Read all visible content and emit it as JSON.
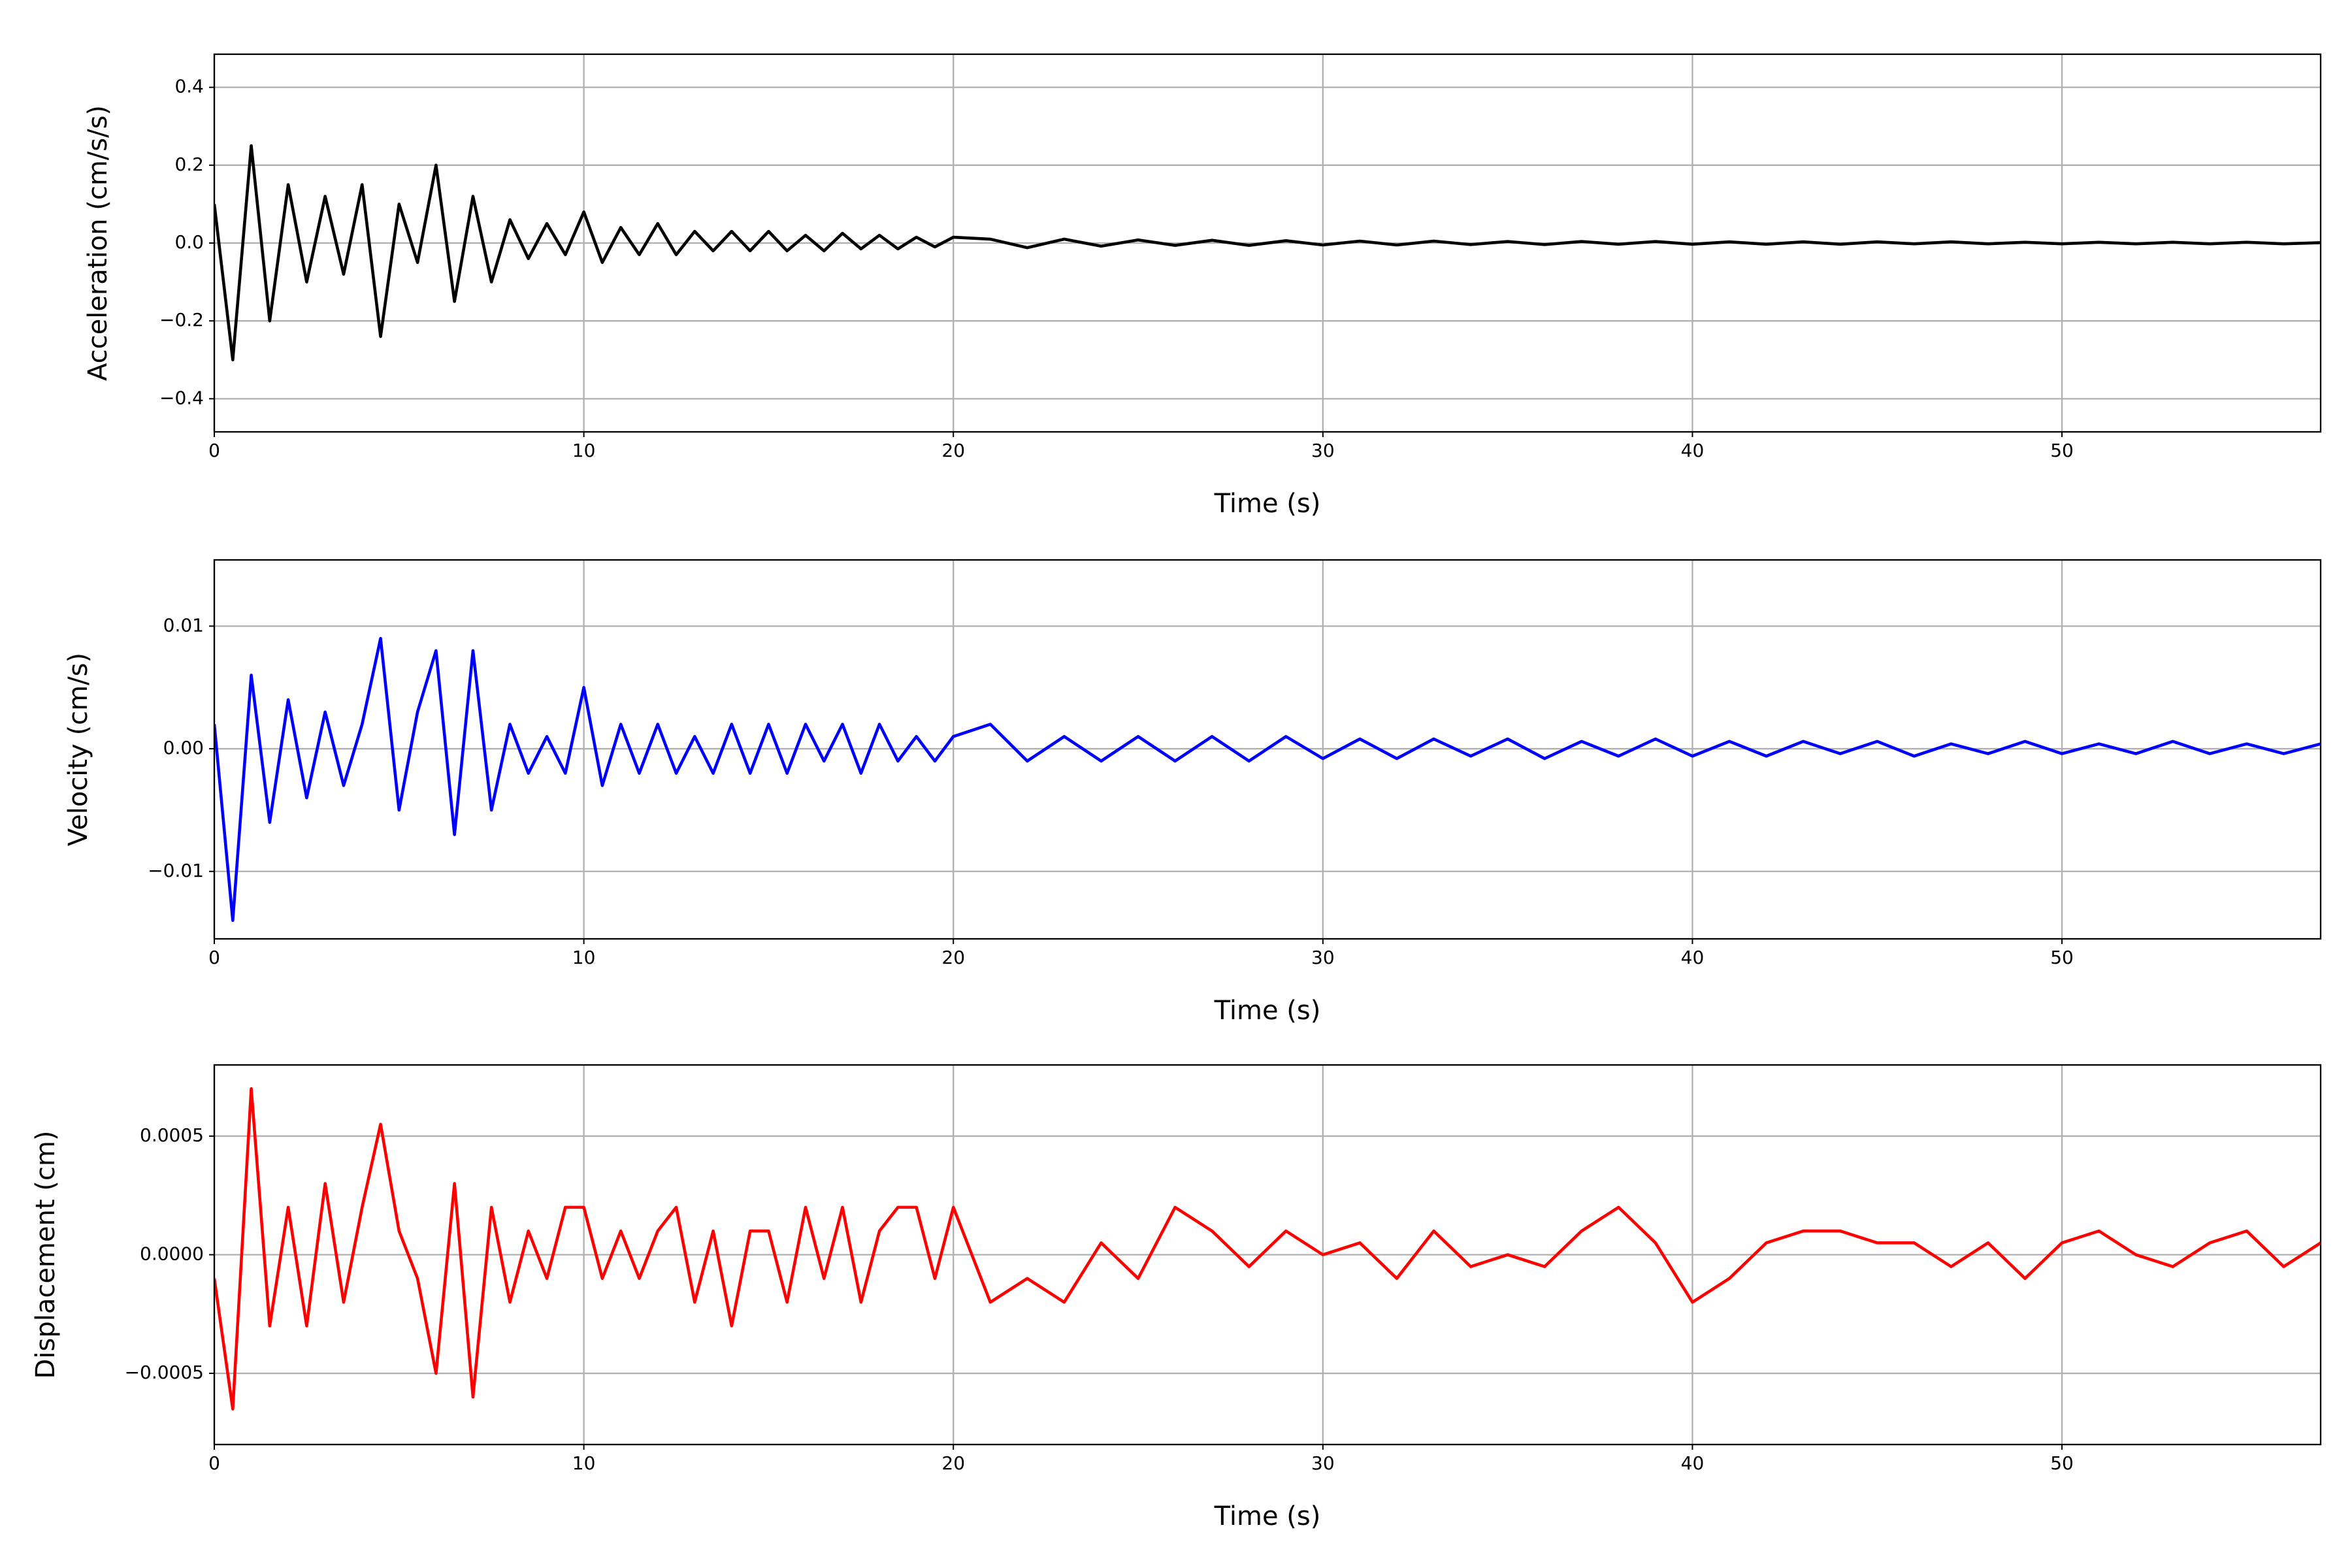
{
  "chart_data": [
    {
      "type": "line",
      "xlabel": "Time (s)",
      "ylabel": "Acceleration (cm/s/s)",
      "color": "#000000",
      "grid": true,
      "xlim": [
        0,
        57
      ],
      "xticks": [
        0,
        10,
        20,
        30,
        40,
        50
      ],
      "ylim": [
        -0.485,
        0.485
      ],
      "yticks": [
        {
          "value": -0.4,
          "label": "−0.4"
        },
        {
          "value": -0.2,
          "label": "−0.2"
        },
        {
          "value": 0,
          "label": "0.0"
        },
        {
          "value": 0.2,
          "label": "0.2"
        },
        {
          "value": 0.4,
          "label": "0.4"
        }
      ],
      "x": [
        0,
        0.5,
        1,
        1.5,
        2,
        2.5,
        3,
        3.5,
        4,
        4.5,
        5,
        5.5,
        6,
        6.5,
        7,
        7.5,
        8,
        8.5,
        9,
        9.5,
        10,
        10.5,
        11,
        11.5,
        12,
        12.5,
        13,
        13.5,
        14,
        14.5,
        15,
        15.5,
        16,
        16.5,
        17,
        17.5,
        18,
        18.5,
        19,
        19.5,
        20,
        21,
        22,
        23,
        24,
        25,
        26,
        27,
        28,
        29,
        30,
        31,
        32,
        33,
        34,
        35,
        36,
        37,
        38,
        39,
        40,
        41,
        42,
        43,
        44,
        45,
        46,
        47,
        48,
        49,
        50,
        51,
        52,
        53,
        54,
        55,
        56,
        57
      ],
      "values": [
        0.1,
        -0.3,
        0.25,
        -0.2,
        0.15,
        -0.1,
        0.12,
        -0.08,
        0.15,
        -0.24,
        0.1,
        -0.05,
        0.2,
        -0.15,
        0.12,
        -0.1,
        0.06,
        -0.04,
        0.05,
        -0.03,
        0.08,
        -0.05,
        0.04,
        -0.03,
        0.05,
        -0.03,
        0.03,
        -0.02,
        0.03,
        -0.02,
        0.03,
        -0.02,
        0.02,
        -0.02,
        0.025,
        -0.015,
        0.02,
        -0.015,
        0.015,
        -0.01,
        0.015,
        0.01,
        -0.012,
        0.01,
        -0.008,
        0.008,
        -0.006,
        0.007,
        -0.006,
        0.006,
        -0.005,
        0.005,
        -0.005,
        0.005,
        -0.004,
        0.004,
        -0.004,
        0.004,
        -0.003,
        0.004,
        -0.003,
        0.003,
        -0.003,
        0.003,
        -0.003,
        0.003,
        -0.002,
        0.003,
        -0.002,
        0.002,
        -0.002,
        0.002,
        -0.002,
        0.002,
        -0.002,
        0.002,
        -0.002,
        0.001
      ]
    },
    {
      "type": "line",
      "xlabel": "Time (s)",
      "ylabel": "Velocity (cm/s)",
      "color": "#0000ff",
      "grid": true,
      "xlim": [
        0,
        57
      ],
      "xticks": [
        0,
        10,
        20,
        30,
        40,
        50
      ],
      "ylim": [
        -0.0155,
        0.0154
      ],
      "yticks": [
        {
          "value": -0.01,
          "label": "−0.01"
        },
        {
          "value": 0,
          "label": "0.00"
        },
        {
          "value": 0.01,
          "label": "0.01"
        }
      ],
      "x": [
        0,
        0.5,
        1,
        1.5,
        2,
        2.5,
        3,
        3.5,
        4,
        4.5,
        5,
        5.5,
        6,
        6.5,
        7,
        7.5,
        8,
        8.5,
        9,
        9.5,
        10,
        10.5,
        11,
        11.5,
        12,
        12.5,
        13,
        13.5,
        14,
        14.5,
        15,
        15.5,
        16,
        16.5,
        17,
        17.5,
        18,
        18.5,
        19,
        19.5,
        20,
        21,
        22,
        23,
        24,
        25,
        26,
        27,
        28,
        29,
        30,
        31,
        32,
        33,
        34,
        35,
        36,
        37,
        38,
        39,
        40,
        41,
        42,
        43,
        44,
        45,
        46,
        47,
        48,
        49,
        50,
        51,
        52,
        53,
        54,
        55,
        56,
        57
      ],
      "values": [
        0.002,
        -0.014,
        0.006,
        -0.006,
        0.004,
        -0.004,
        0.003,
        -0.003,
        0.002,
        0.009,
        -0.005,
        0.003,
        0.008,
        -0.007,
        0.008,
        -0.005,
        0.002,
        -0.002,
        0.001,
        -0.002,
        0.005,
        -0.003,
        0.002,
        -0.002,
        0.002,
        -0.002,
        0.001,
        -0.002,
        0.002,
        -0.002,
        0.002,
        -0.002,
        0.002,
        -0.001,
        0.002,
        -0.002,
        0.002,
        -0.001,
        0.001,
        -0.001,
        0.001,
        0.002,
        -0.001,
        0.001,
        -0.001,
        0.001,
        -0.001,
        0.001,
        -0.001,
        0.001,
        -0.0008,
        0.0008,
        -0.0008,
        0.0008,
        -0.0006,
        0.0008,
        -0.0008,
        0.0006,
        -0.0006,
        0.0008,
        -0.0006,
        0.0006,
        -0.0006,
        0.0006,
        -0.0004,
        0.0006,
        -0.0006,
        0.0004,
        -0.0004,
        0.0006,
        -0.0004,
        0.0004,
        -0.0004,
        0.0006,
        -0.0004,
        0.0004,
        -0.0004,
        0.0004
      ]
    },
    {
      "type": "line",
      "xlabel": "Time (s)",
      "ylabel": "Displacement (cm)",
      "color": "#ff0000",
      "grid": true,
      "xlim": [
        0,
        57
      ],
      "xticks": [
        0,
        10,
        20,
        30,
        40,
        50
      ],
      "ylim": [
        -0.0008,
        0.0008
      ],
      "yticks": [
        {
          "value": -0.0005,
          "label": "−0.0005"
        },
        {
          "value": 0,
          "label": "0.0000"
        },
        {
          "value": 0.0005,
          "label": "0.0005"
        }
      ],
      "x": [
        0,
        0.5,
        1,
        1.5,
        2,
        2.5,
        3,
        3.5,
        4,
        4.5,
        5,
        5.5,
        6,
        6.5,
        7,
        7.5,
        8,
        8.5,
        9,
        9.5,
        10,
        10.5,
        11,
        11.5,
        12,
        12.5,
        13,
        13.5,
        14,
        14.5,
        15,
        15.5,
        16,
        16.5,
        17,
        17.5,
        18,
        18.5,
        19,
        19.5,
        20,
        21,
        22,
        23,
        24,
        25,
        26,
        27,
        28,
        29,
        30,
        31,
        32,
        33,
        34,
        35,
        36,
        37,
        38,
        39,
        40,
        41,
        42,
        43,
        44,
        45,
        46,
        47,
        48,
        49,
        50,
        51,
        52,
        53,
        54,
        55,
        56,
        57
      ],
      "values": [
        -0.0001,
        -0.00065,
        0.0007,
        -0.0003,
        0.0002,
        -0.0003,
        0.0003,
        -0.0002,
        0.0002,
        0.00055,
        0.0001,
        -0.0001,
        -0.0005,
        0.0003,
        -0.0006,
        0.0002,
        -0.0002,
        0.0001,
        -0.0001,
        0.0002,
        0.0002,
        -0.0001,
        0.0001,
        -0.0001,
        0.0001,
        0.0002,
        -0.0002,
        0.0001,
        -0.0003,
        0.0001,
        0.0001,
        -0.0002,
        0.0002,
        -0.0001,
        0.0002,
        -0.0002,
        0.0001,
        0.0002,
        0.0002,
        -0.0001,
        0.0002,
        -0.0002,
        -0.0001,
        -0.0002,
        5e-05,
        -0.0001,
        0.0002,
        0.0001,
        -5e-05,
        0.0001,
        0,
        5e-05,
        -0.0001,
        0.0001,
        -5e-05,
        0,
        -5e-05,
        0.0001,
        0.0002,
        5e-05,
        -0.0002,
        -0.0001,
        5e-05,
        0.0001,
        0.0001,
        5e-05,
        5e-05,
        -5e-05,
        5e-05,
        -0.0001,
        5e-05,
        0.0001,
        0,
        -5e-05,
        5e-05,
        0.0001,
        -5e-05,
        5e-05
      ]
    }
  ]
}
